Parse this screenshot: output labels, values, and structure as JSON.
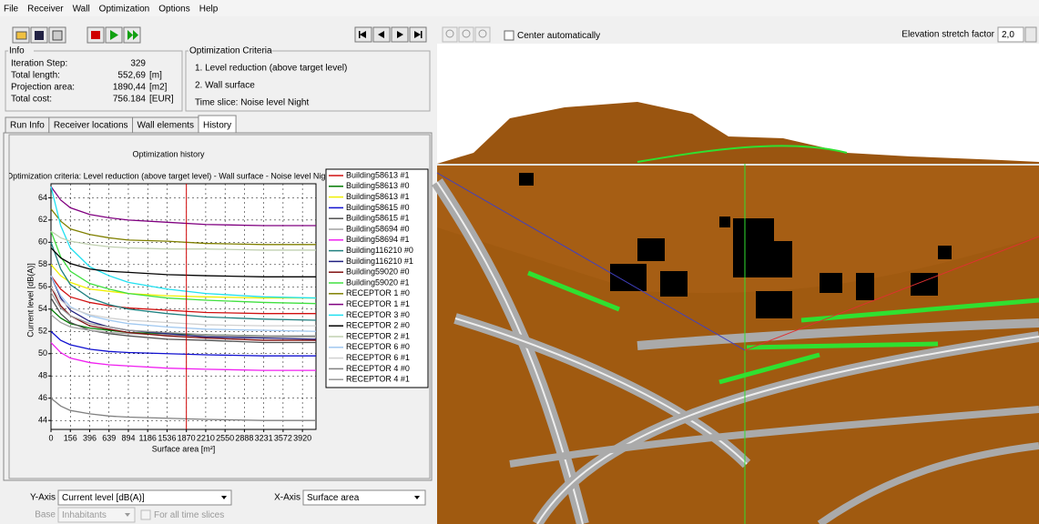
{
  "menu": [
    "File",
    "Receiver",
    "Wall",
    "Optimization",
    "Options",
    "Help"
  ],
  "info": {
    "title": "Info",
    "rows": [
      {
        "label": "Iteration Step:",
        "value": "329"
      },
      {
        "label": "Total length:",
        "value": "552,69",
        "unit": "[m]"
      },
      {
        "label": "Projection area:",
        "value": "1890,44",
        "unit": "[m2]"
      },
      {
        "label": "Total cost:",
        "value": "756.184",
        "unit": "[EUR]"
      }
    ]
  },
  "criteria": {
    "title": "Optimization Criteria",
    "items": [
      "1. Level reduction (above target level)",
      "2. Wall surface",
      "Time slice: Noise level Night"
    ]
  },
  "tabs": [
    "Run Info",
    "Receiver locations",
    "Wall elements",
    "History"
  ],
  "active_tab": 3,
  "view": {
    "center_automatically": "Center automatically",
    "elevation_label": "Elevation stretch factor",
    "elevation_value": "2,0"
  },
  "controls": {
    "y_axis_label": "Y-Axis",
    "y_axis_value": "Current level [dB(A)]",
    "x_axis_label": "X-Axis",
    "x_axis_value": "Surface area",
    "base_label": "Base",
    "base_value": "Inhabitants",
    "all_slices": "For all time slices"
  },
  "chart_data": {
    "type": "line",
    "title": "Optimization history",
    "subtitle": "Optimization criteria: Level reduction (above target level) - Wall surface - Noise level Night",
    "ylabel": "Current level [dB(A)]",
    "xlabel": "Surface area [m²]",
    "grid": true,
    "marker_x": 7,
    "xlim": [
      0,
      13.7
    ],
    "ylim": [
      43.2,
      66.4
    ],
    "yticks": [
      44,
      46,
      48,
      50,
      52,
      54,
      56,
      58,
      60,
      62,
      64
    ],
    "xticks": [
      {
        "value": 0,
        "label": "0"
      },
      {
        "value": 1,
        "label": "156"
      },
      {
        "value": 2,
        "label": "396"
      },
      {
        "value": 3,
        "label": "639"
      },
      {
        "value": 4,
        "label": "894"
      },
      {
        "value": 5,
        "label": "1186"
      },
      {
        "value": 6,
        "label": "1536"
      },
      {
        "value": 7,
        "label": "1870"
      },
      {
        "value": 8,
        "label": "2210"
      },
      {
        "value": 9,
        "label": "2550"
      },
      {
        "value": 10,
        "label": "2888"
      },
      {
        "value": 11,
        "label": "3231"
      },
      {
        "value": 12,
        "label": "3572"
      },
      {
        "value": 13,
        "label": "3920"
      }
    ],
    "x": [
      0,
      0.5,
      1,
      2,
      3,
      4,
      6,
      8,
      11,
      13.7
    ],
    "series": [
      {
        "name": "Building58613 #1",
        "color": "#d01010",
        "values": [
          57,
          55.8,
          55.1,
          54.6,
          54.3,
          54.1,
          53.9,
          53.7,
          53.6,
          53.6
        ]
      },
      {
        "name": "Building58613 #0",
        "color": "#007a00",
        "values": [
          54,
          53.2,
          52.7,
          52.3,
          52.1,
          51.9,
          51.8,
          51.7,
          51.6,
          51.6
        ]
      },
      {
        "name": "Building58613 #1",
        "color": "#f0f000",
        "values": [
          58,
          57,
          56.4,
          55.8,
          55.6,
          55.4,
          55.2,
          55.1,
          55,
          55
        ]
      },
      {
        "name": "Building58615 #0",
        "color": "#1010d0",
        "values": [
          52,
          51.2,
          50.8,
          50.4,
          50.2,
          50.1,
          50,
          49.9,
          49.8,
          49.8
        ]
      },
      {
        "name": "Building58615 #1",
        "color": "#505050",
        "values": [
          55,
          53.6,
          52.8,
          52.1,
          51.8,
          51.6,
          51.3,
          51.2,
          51,
          51
        ]
      },
      {
        "name": "Building58694 #0",
        "color": "#a0a0a0",
        "values": [
          53.5,
          52.8,
          52.4,
          52.1,
          51.9,
          51.8,
          51.7,
          51.6,
          51.5,
          51.5
        ]
      },
      {
        "name": "Building58694 #1",
        "color": "#f020f0",
        "values": [
          51,
          50.1,
          49.6,
          49.2,
          49,
          48.9,
          48.7,
          48.6,
          48.5,
          48.5
        ]
      },
      {
        "name": "Building116210 #0",
        "color": "#208080",
        "values": [
          60,
          57.6,
          56.2,
          55,
          54.4,
          54,
          53.6,
          53.3,
          53.1,
          53
        ]
      },
      {
        "name": "Building116210 #1",
        "color": "#202080",
        "values": [
          57,
          55,
          53.9,
          52.9,
          52.4,
          52.1,
          51.8,
          51.5,
          51.4,
          51.3
        ]
      },
      {
        "name": "Building59020 #0",
        "color": "#801010",
        "values": [
          56,
          54.3,
          53.4,
          52.5,
          52.2,
          51.9,
          51.6,
          51.4,
          51.2,
          51.2
        ]
      },
      {
        "name": "Building59020 #1",
        "color": "#40e040",
        "values": [
          61,
          58.7,
          57.4,
          56.3,
          55.8,
          55.4,
          55,
          54.8,
          54.6,
          54.5
        ]
      },
      {
        "name": "RECEPTOR 1 #0",
        "color": "#808000",
        "values": [
          63,
          61.9,
          61.2,
          60.7,
          60.4,
          60.2,
          60.1,
          59.9,
          59.8,
          59.8
        ]
      },
      {
        "name": "RECEPTOR 1 #1",
        "color": "#800080",
        "values": [
          65,
          63.8,
          63.1,
          62.5,
          62.2,
          62,
          61.8,
          61.6,
          61.5,
          61.5
        ]
      },
      {
        "name": "RECEPTOR 3 #0",
        "color": "#20e0f0",
        "values": [
          65,
          61.5,
          59.5,
          57.8,
          57,
          56.4,
          55.8,
          55.4,
          55.1,
          55
        ]
      },
      {
        "name": "RECEPTOR 2 #0",
        "color": "#000000",
        "values": [
          59.5,
          58.6,
          58.1,
          57.6,
          57.4,
          57.3,
          57.1,
          57,
          56.9,
          56.9
        ]
      },
      {
        "name": "RECEPTOR 2 #1",
        "color": "#c0d0b0",
        "values": [
          61,
          60.4,
          60.1,
          59.8,
          59.6,
          59.5,
          59.4,
          59.4,
          59.3,
          59.3
        ]
      },
      {
        "name": "RECEPTOR 6 #0",
        "color": "#a0c8f0",
        "values": [
          57,
          55.2,
          54.2,
          53.4,
          53,
          52.7,
          52.4,
          52.2,
          52.1,
          52
        ]
      },
      {
        "name": "RECEPTOR 6 #1",
        "color": "#d0d0d0",
        "values": [
          56,
          54.8,
          54.1,
          53.5,
          53.2,
          53,
          52.8,
          52.6,
          52.5,
          52.5
        ]
      },
      {
        "name": "RECEPTOR 4 #0",
        "color": "#808080",
        "values": [
          46,
          45.3,
          44.9,
          44.6,
          44.4,
          44.3,
          44.2,
          44.1,
          44,
          44
        ]
      },
      {
        "name": "RECEPTOR 4 #1",
        "color": "#989898",
        "values": [
          55.5,
          54.1,
          53.4,
          52.7,
          52.4,
          52.1,
          51.9,
          51.7,
          51.6,
          51.6
        ]
      }
    ]
  }
}
